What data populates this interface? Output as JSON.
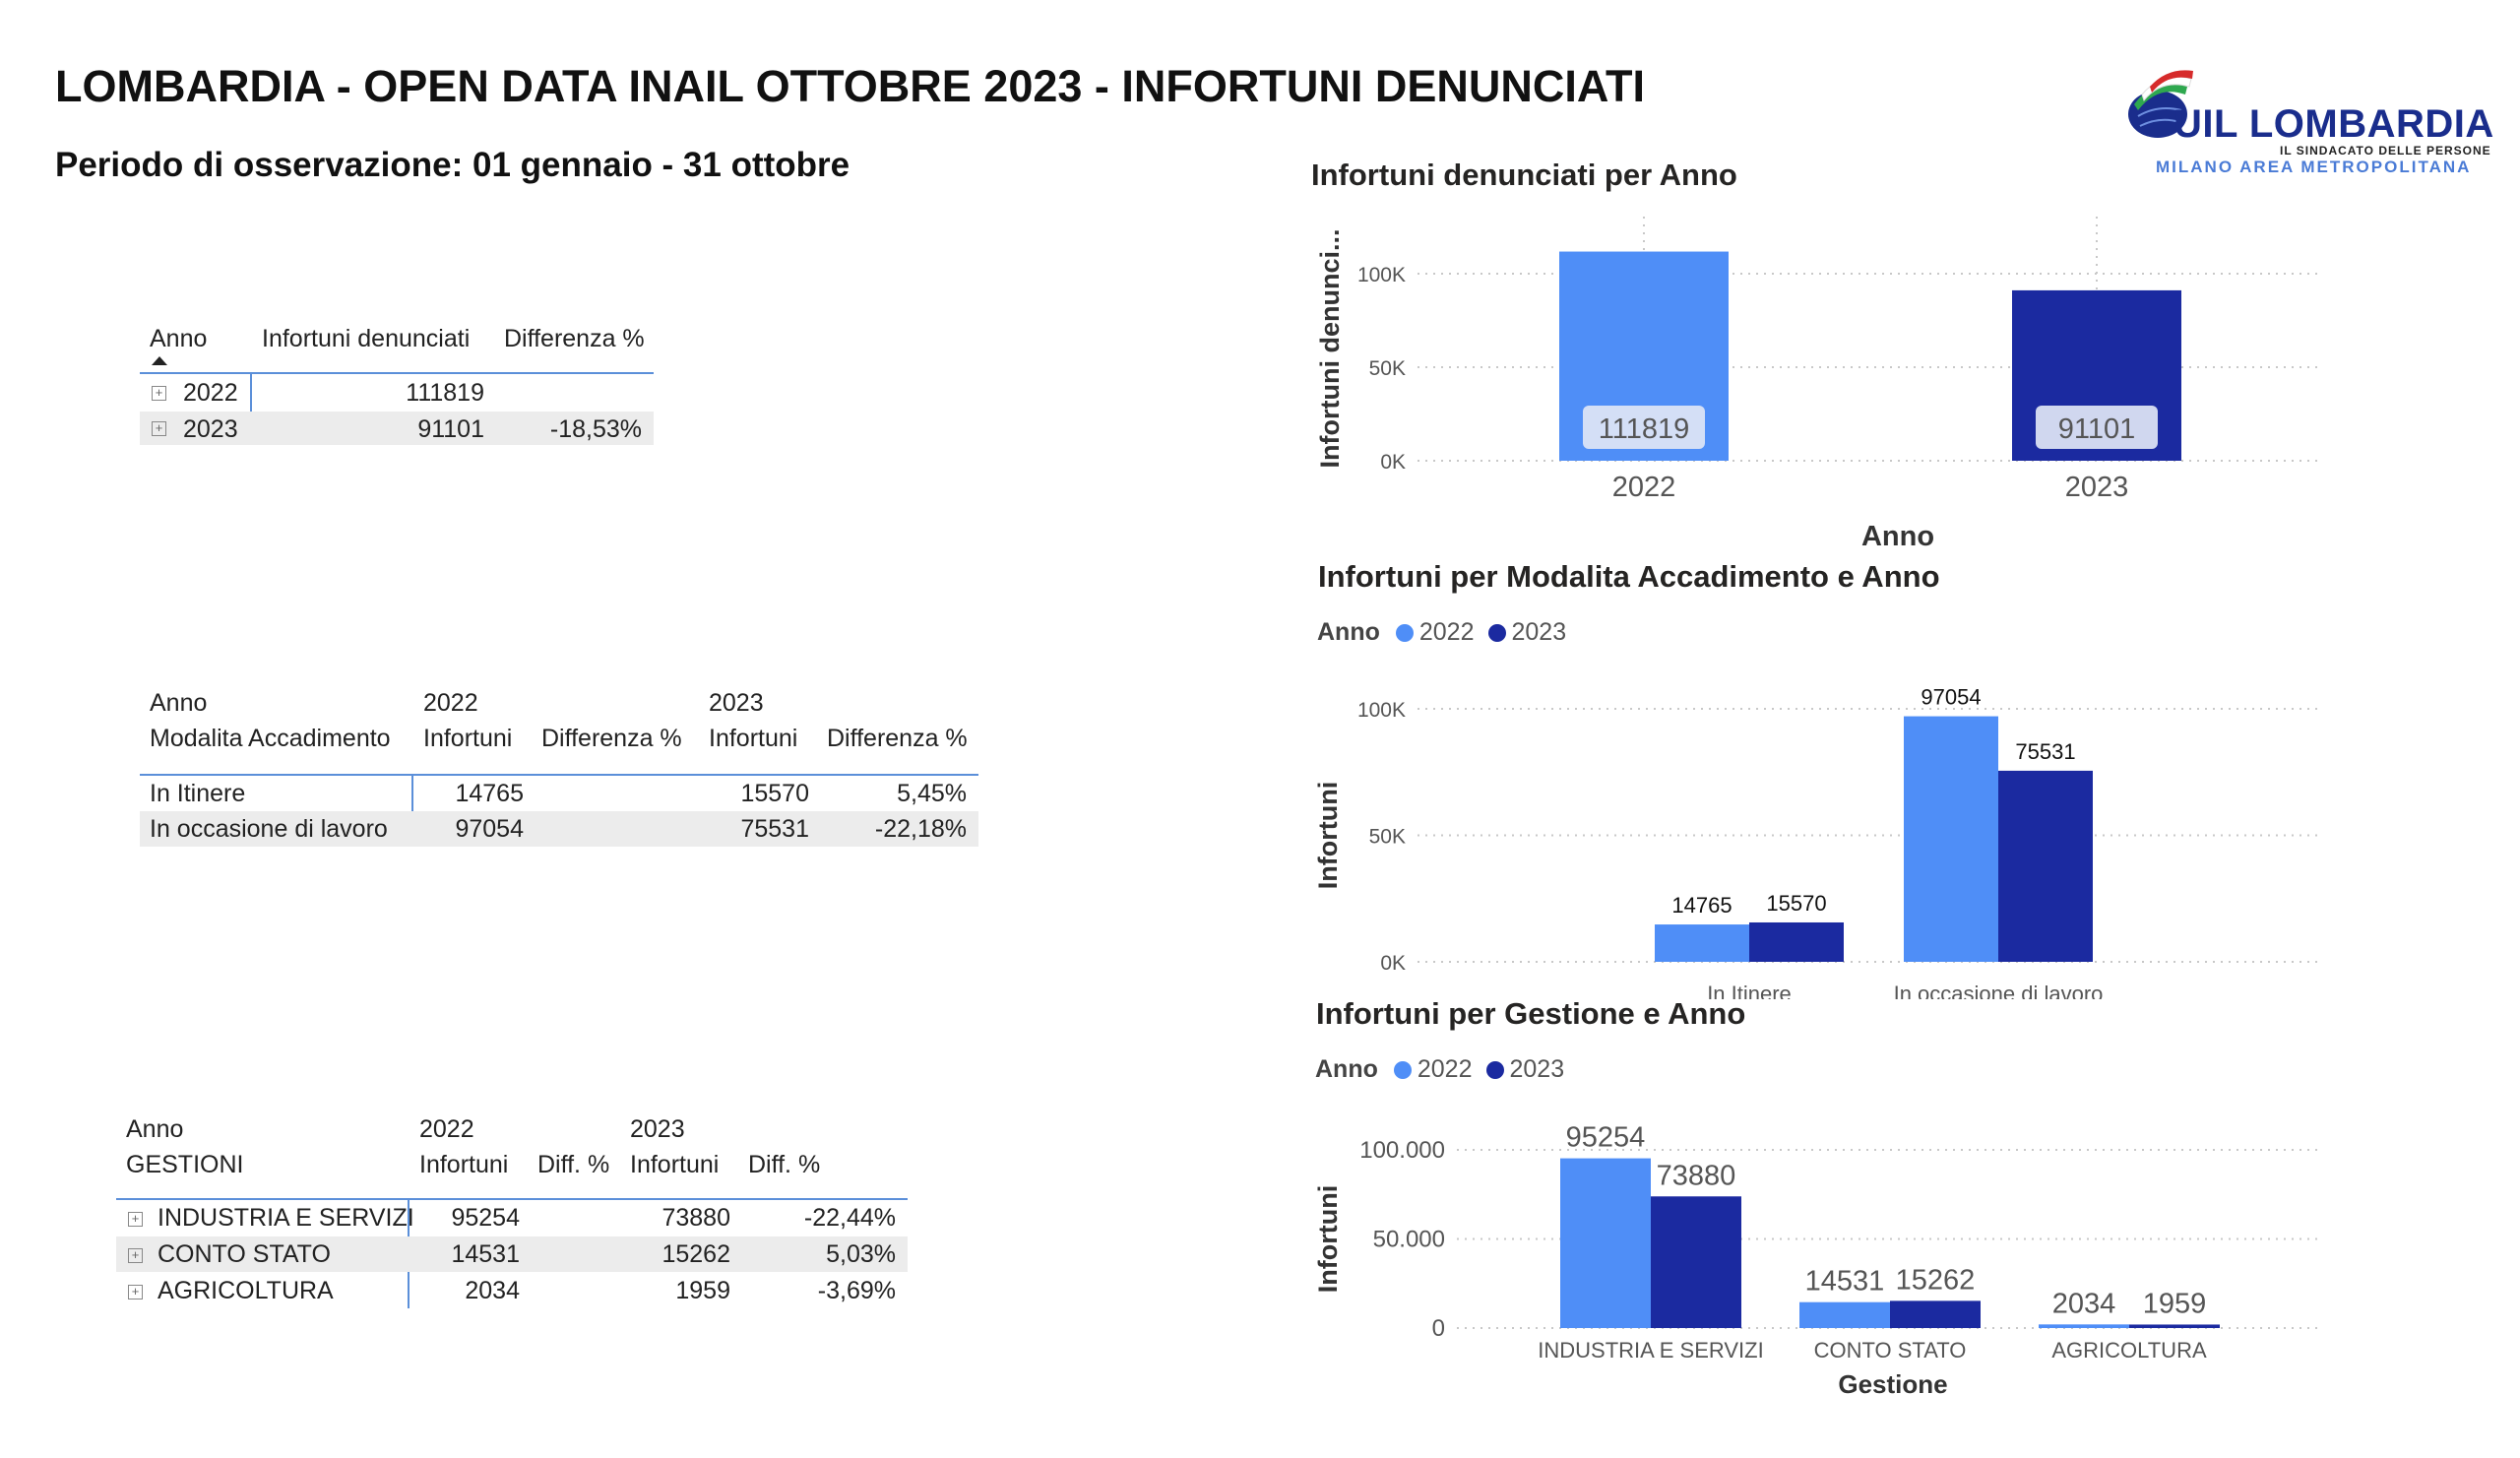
{
  "header": {
    "title": "LOMBARDIA - OPEN DATA INAIL OTTOBRE 2023 - INFORTUNI DENUNCIATI",
    "subtitle": "Periodo di osservazione: 01 gennaio - 31 ottobre"
  },
  "logo": {
    "name": "UIL LOMBARDIA",
    "tagline": "IL SINDACATO DELLE PERSONE",
    "area": "MILANO AREA METROPOLITANA"
  },
  "colors": {
    "y2022": "#4f8ef7",
    "y2023": "#1b2aa0",
    "label_bg": "#dfe6f5"
  },
  "table1": {
    "headers": [
      "Anno",
      "Infortuni denunciati",
      "Differenza %"
    ],
    "rows": [
      {
        "anno": "2022",
        "infortuni": "111819",
        "diff": ""
      },
      {
        "anno": "2023",
        "infortuni": "91101",
        "diff": "-18,53%"
      }
    ]
  },
  "table2": {
    "header_top": {
      "anno": "Anno",
      "y2022": "2022",
      "y2023": "2023"
    },
    "header_sub": [
      "Modalita Accadimento",
      "Infortuni",
      "Differenza %",
      "Infortuni",
      "Differenza %"
    ],
    "rows": [
      {
        "label": "In Itinere",
        "inf2022": "14765",
        "diff2022": "",
        "inf2023": "15570",
        "diff2023": "5,45%"
      },
      {
        "label": "In occasione di lavoro",
        "inf2022": "97054",
        "diff2022": "",
        "inf2023": "75531",
        "diff2023": "-22,18%"
      }
    ]
  },
  "table3": {
    "header_top": {
      "anno": "Anno",
      "y2022": "2022",
      "y2023": "2023"
    },
    "header_sub": [
      "GESTIONI",
      "Infortuni",
      "Diff. %",
      "Infortuni",
      "Diff. %"
    ],
    "rows": [
      {
        "label": "INDUSTRIA E SERVIZI",
        "inf2022": "95254",
        "diff2022": "",
        "inf2023": "73880",
        "diff2023": "-22,44%"
      },
      {
        "label": "CONTO STATO",
        "inf2022": "14531",
        "diff2022": "",
        "inf2023": "15262",
        "diff2023": "5,03%"
      },
      {
        "label": "AGRICOLTURA",
        "inf2022": "2034",
        "diff2022": "",
        "inf2023": "1959",
        "diff2023": "-3,69%"
      }
    ]
  },
  "legends": {
    "title": "Anno",
    "items": [
      "2022",
      "2023"
    ]
  },
  "chart_data": [
    {
      "type": "bar",
      "title": "Infortuni denunciati per Anno",
      "xlabel": "Anno",
      "ylabel": "Infortuni denunci...",
      "categories": [
        "2022",
        "2023"
      ],
      "values": [
        111819,
        91101
      ],
      "value_labels": [
        "111819",
        "91101"
      ],
      "yticks": [
        "0K",
        "50K",
        "100K"
      ],
      "ylim": [
        0,
        120000
      ],
      "grid": true
    },
    {
      "type": "bar",
      "title": "Infortuni per Modalita Accadimento e Anno",
      "xlabel": "",
      "ylabel": "Infortuni",
      "categories": [
        "In Itinere",
        "In occasione di lavoro"
      ],
      "series": [
        {
          "name": "2022",
          "values": [
            14765,
            97054
          ]
        },
        {
          "name": "2023",
          "values": [
            15570,
            75531
          ]
        }
      ],
      "yticks": [
        "0K",
        "50K",
        "100K"
      ],
      "ylim": [
        0,
        100000
      ],
      "legend": "top-left",
      "grid": true
    },
    {
      "type": "bar",
      "title": "Infortuni per Gestione e Anno",
      "xlabel": "Gestione",
      "ylabel": "Infortuni",
      "categories": [
        "INDUSTRIA E SERVIZI",
        "CONTO STATO",
        "AGRICOLTURA"
      ],
      "series": [
        {
          "name": "2022",
          "values": [
            95254,
            14531,
            2034
          ]
        },
        {
          "name": "2023",
          "values": [
            73880,
            15262,
            1959
          ]
        }
      ],
      "yticks": [
        "0",
        "50.000",
        "100.000"
      ],
      "ylim": [
        0,
        100000
      ],
      "legend": "top-left",
      "grid": true
    }
  ]
}
